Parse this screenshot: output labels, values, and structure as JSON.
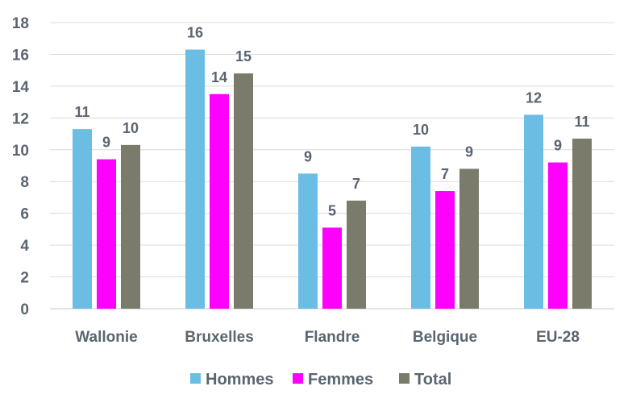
{
  "chart_data": {
    "type": "bar",
    "categories": [
      "Wallonie",
      "Bruxelles",
      "Flandre",
      "Belgique",
      "EU-28"
    ],
    "series": [
      {
        "name": "Hommes",
        "color": "#6bbde3",
        "values": [
          11.3,
          16.3,
          8.5,
          10.2,
          12.2
        ],
        "labels": [
          "11",
          "16",
          "9",
          "10",
          "12"
        ]
      },
      {
        "name": "Femmes",
        "color": "#ff00ff",
        "values": [
          9.4,
          13.5,
          5.1,
          7.4,
          9.2
        ],
        "labels": [
          "9",
          "14",
          "5",
          "7",
          "9"
        ]
      },
      {
        "name": "Total",
        "color": "#7b7b6b",
        "values": [
          10.3,
          14.8,
          6.8,
          8.8,
          10.7
        ],
        "labels": [
          "10",
          "15",
          "7",
          "9",
          "11"
        ]
      }
    ],
    "ylim": [
      0,
      18
    ],
    "yticks": [
      0,
      2,
      4,
      6,
      8,
      10,
      12,
      14,
      16,
      18
    ],
    "grid": true,
    "legend": "bottom"
  }
}
